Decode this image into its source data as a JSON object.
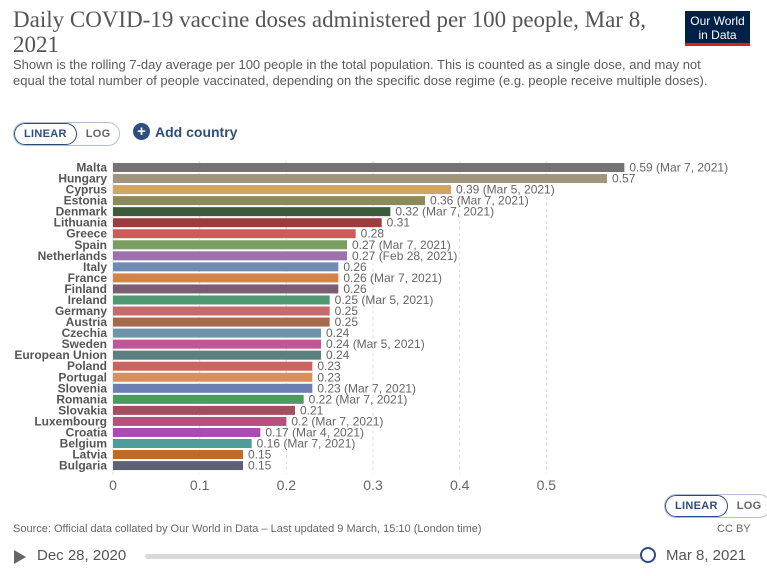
{
  "header": {
    "title": "Daily COVID-19 vaccine doses administered per 100 people, Mar 8, 2021",
    "subtitle": "Shown is the rolling 7-day average per 100 people in the total population. This is counted as a single dose, and may not equal the total number of people vaccinated, depending on the specific dose regime (e.g. people receive multiple doses).",
    "logo_line1": "Our World",
    "logo_line2": "in Data"
  },
  "controls": {
    "linear_label": "LINEAR",
    "log_label": "LOG",
    "add_country_label": "Add country",
    "add_country_icon": "plus-circle-icon"
  },
  "chart_data": {
    "type": "bar",
    "orientation": "horizontal",
    "categories": [
      "Malta",
      "Hungary",
      "Cyprus",
      "Estonia",
      "Denmark",
      "Lithuania",
      "Greece",
      "Spain",
      "Netherlands",
      "Italy",
      "France",
      "Finland",
      "Ireland",
      "Germany",
      "Austria",
      "Czechia",
      "Sweden",
      "European Union",
      "Poland",
      "Portugal",
      "Slovenia",
      "Romania",
      "Slovakia",
      "Luxembourg",
      "Croatia",
      "Belgium",
      "Latvia",
      "Bulgaria"
    ],
    "values": [
      0.59,
      0.57,
      0.39,
      0.36,
      0.32,
      0.31,
      0.28,
      0.27,
      0.27,
      0.26,
      0.26,
      0.26,
      0.25,
      0.25,
      0.25,
      0.24,
      0.24,
      0.24,
      0.23,
      0.23,
      0.23,
      0.22,
      0.21,
      0.2,
      0.17,
      0.16,
      0.15,
      0.15
    ],
    "value_labels": [
      "0.59 (Mar 7, 2021)",
      "0.57",
      "0.39 (Mar 5, 2021)",
      "0.36 (Mar 7, 2021)",
      "0.32 (Mar 7, 2021)",
      "0.31",
      "0.28",
      "0.27 (Mar 7, 2021)",
      "0.27 (Feb 28, 2021)",
      "0.26",
      "0.26 (Mar 7, 2021)",
      "0.26",
      "0.25 (Mar 5, 2021)",
      "0.25",
      "0.25",
      "0.24",
      "0.24 (Mar 5, 2021)",
      "0.24",
      "0.23",
      "0.23",
      "0.23 (Mar 7, 2021)",
      "0.22 (Mar 7, 2021)",
      "0.21",
      "0.2 (Mar 7, 2021)",
      "0.17 (Mar 4, 2021)",
      "0.16 (Mar 7, 2021)",
      "0.15",
      "0.15"
    ],
    "colors": [
      "#737373",
      "#a1957d",
      "#d3a461",
      "#8b8a5a",
      "#3d5a3b",
      "#9d3c3c",
      "#d0595a",
      "#7a9e61",
      "#9c71ad",
      "#6f8bb2",
      "#d48446",
      "#7b5d73",
      "#4f9872",
      "#c66b6b",
      "#a56a4d",
      "#6e94ac",
      "#c45496",
      "#5b807f",
      "#cd6361",
      "#d98f5b",
      "#6d7eb1",
      "#4c9a61",
      "#a14e60",
      "#b54f7b",
      "#a84cae",
      "#4e9d99",
      "#ba6c2d",
      "#5c6276"
    ],
    "xlim": [
      0,
      0.6
    ],
    "x_ticks": [
      0,
      0.1,
      0.2,
      0.3,
      0.4,
      0.5
    ],
    "x_tick_labels": [
      "0",
      "0.1",
      "0.2",
      "0.3",
      "0.4",
      "0.5"
    ],
    "grid": true,
    "scale": "linear"
  },
  "footer": {
    "source": "Source: Official data collated by Our World in Data – Last updated 9 March, 15:10 (London time)",
    "license": "CC BY"
  },
  "timeline": {
    "start_date": "Dec 28, 2020",
    "end_date": "Mar 8, 2021"
  }
}
